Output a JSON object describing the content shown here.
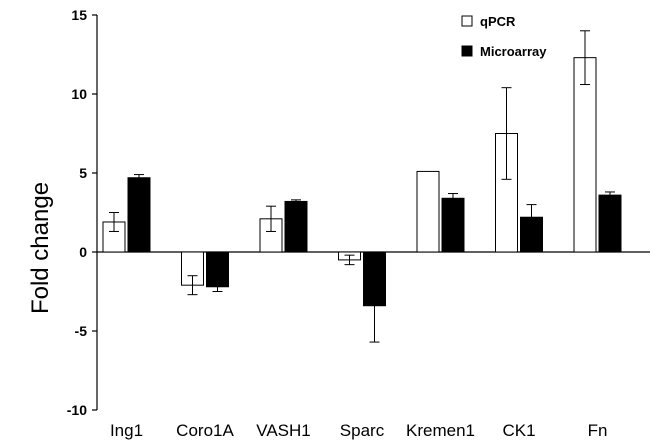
{
  "chart_data": {
    "type": "bar",
    "title": "",
    "xlabel": "",
    "ylabel": "Fold change",
    "ylim": [
      -10,
      15
    ],
    "yticks": [
      15,
      10,
      5,
      0,
      -5,
      -10
    ],
    "grid": false,
    "legend_position": "top-right",
    "categories": [
      "Ing1",
      "Coro1A",
      "VASH1",
      "Sparc",
      "Kremen1",
      "CK1",
      "Fn"
    ],
    "series": [
      {
        "name": "qPCR",
        "color": "#ffffff",
        "values": [
          1.9,
          -2.1,
          2.1,
          -0.5,
          5.1,
          7.5,
          12.3
        ],
        "errors": [
          0.6,
          0.6,
          0.8,
          0.3,
          0.0,
          2.9,
          1.7
        ]
      },
      {
        "name": "Microarray",
        "color": "#000000",
        "values": [
          4.7,
          -2.2,
          3.2,
          -3.4,
          3.4,
          2.2,
          3.6
        ],
        "errors": [
          0.2,
          0.3,
          0.1,
          2.3,
          0.3,
          0.8,
          0.2
        ]
      }
    ]
  }
}
